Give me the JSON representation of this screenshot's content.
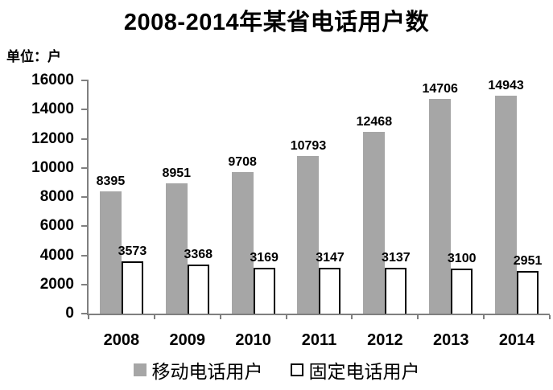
{
  "title": "2008-2014年某省电话用户数",
  "unit_label": "单位：户",
  "chart_data": {
    "type": "bar",
    "title": "2008-2014年某省电话用户数",
    "unit": "户",
    "categories": [
      "2008",
      "2009",
      "2010",
      "2011",
      "2012",
      "2013",
      "2014"
    ],
    "series": [
      {
        "name": "移动电话用户",
        "color": "#a6a6a6",
        "border": "none",
        "values": [
          8395,
          8951,
          9708,
          10793,
          12468,
          14706,
          14943
        ]
      },
      {
        "name": "固定电话用户",
        "color": "#ffffff",
        "border": "#000000",
        "values": [
          3573,
          3368,
          3169,
          3147,
          3137,
          3100,
          2951
        ]
      }
    ],
    "ylim": [
      0,
      16000
    ],
    "yticks": [
      0,
      2000,
      4000,
      6000,
      8000,
      10000,
      12000,
      14000,
      16000
    ],
    "grid": false,
    "data_labels": true,
    "legend_position": "bottom",
    "axis_color": "#7f7f7f",
    "text_color": "#000000",
    "background_color": "#ffffff"
  }
}
